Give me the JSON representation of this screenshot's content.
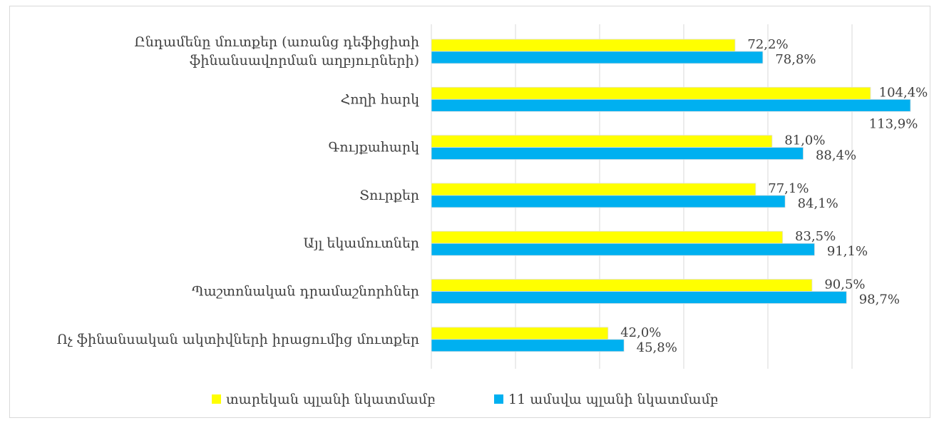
{
  "chart_data": {
    "type": "bar",
    "orientation": "horizontal",
    "categories": [
      [
        "Ընդամենը մուտքեր (առանց դեֆիցիտի",
        "ֆինանսավորման աղբյուրների)"
      ],
      [
        "Հողի հարկ"
      ],
      [
        "Գույքահարկ"
      ],
      [
        "Տուրքեր"
      ],
      [
        "Այլ եկամուտներ"
      ],
      [
        "Պաշտոնական դրամաշնորհներ"
      ],
      [
        "Ոչ ֆինանսական ակտիվների իրացումից մուտքեր"
      ]
    ],
    "series": [
      {
        "name": "տարեկան պլանի նկատմամբ",
        "color": "#ffff00",
        "values": [
          72.2,
          104.4,
          81.0,
          77.1,
          83.5,
          90.5,
          42.0
        ],
        "labels": [
          "72,2%",
          "104,4%",
          "81,0%",
          "77,1%",
          "83,5%",
          "90,5%",
          "42,0%"
        ]
      },
      {
        "name": "11 ամսվա պլանի նկատմամբ",
        "color": "#00b0f0",
        "values": [
          78.8,
          113.9,
          88.4,
          84.1,
          91.1,
          98.7,
          45.8
        ],
        "labels": [
          "78,8%",
          "113,9%",
          "88,4%",
          "84,1%",
          "91,1%",
          "98,7%",
          "45,8%"
        ]
      }
    ],
    "xlim": [
      0,
      120
    ],
    "grid": true,
    "legend": "bottom"
  }
}
